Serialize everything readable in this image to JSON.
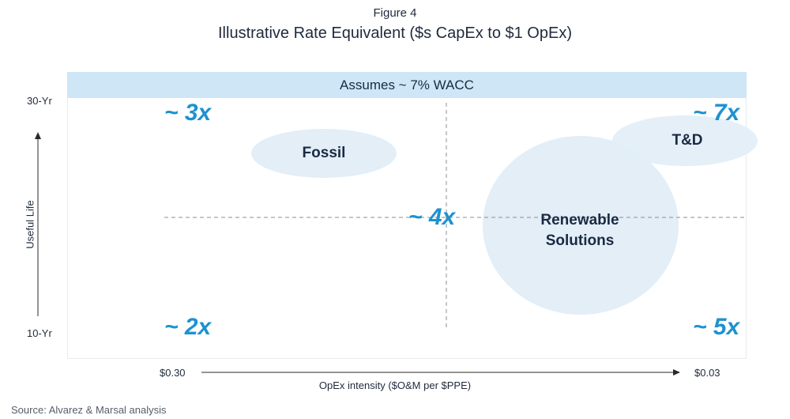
{
  "figure": {
    "label": "Figure 4",
    "title": "Illustrative Rate Equivalent ($s CapEx to $1 OpEx)"
  },
  "band": {
    "text": "Assumes ~ 7% WACC"
  },
  "y_axis": {
    "label": "Useful Life",
    "top_tick": "30-Yr",
    "bottom_tick": "10-Yr"
  },
  "x_axis": {
    "label": "OpEx intensity ($O&M per $PPE)",
    "left_tick": "$0.30",
    "right_tick": "$0.03"
  },
  "multipliers": {
    "top_left": "~ 3x",
    "top_right": "~ 7x",
    "center": "~ 4x",
    "bottom_left": "~ 2x",
    "bottom_right": "~ 5x"
  },
  "bubbles": {
    "fossil": "Fossil",
    "td": "T&D",
    "renewable_line1": "Renewable",
    "renewable_line2": "Solutions"
  },
  "source": "Source: Alvarez & Marsal analysis",
  "colors": {
    "band": "#cfe6f6",
    "bubble": "#e3eef7",
    "multiplier": "#1d92cf",
    "text": "#1a2a44"
  }
}
